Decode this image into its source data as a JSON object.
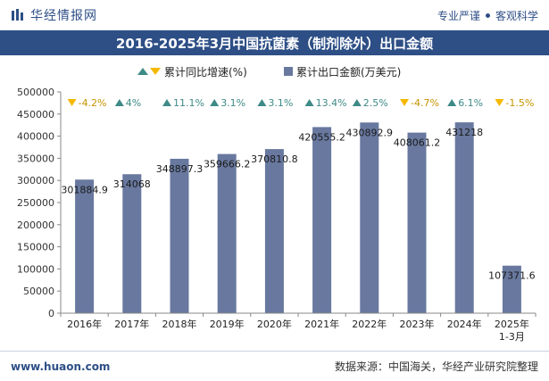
{
  "header": {
    "brand": "华经情报网",
    "slogan_left": "专业严谨",
    "slogan_right": "客观科学"
  },
  "colors": {
    "brand": "#2e4f86",
    "bar": "#68789f",
    "up": "#3d8a86",
    "down": "#f5b800",
    "axis": "#666666"
  },
  "chart_data": {
    "type": "bar",
    "title": "2016-2025年3月中国抗菌素（制剂除外）出口金额",
    "categories": [
      "2016年",
      "2017年",
      "2018年",
      "2019年",
      "2020年",
      "2021年",
      "2022年",
      "2023年",
      "2024年",
      "2025年\n1-3月"
    ],
    "series": [
      {
        "name": "累计出口金额(万美元)",
        "values": [
          301884.9,
          314068,
          348897.3,
          359666.2,
          370810.8,
          420555.2,
          430892.9,
          408061.2,
          431218,
          107371.6
        ],
        "labels": [
          "301884.9",
          "314068",
          "348897.3",
          "359666.2",
          "370810.8",
          "420555.2",
          "430892.9",
          "408061.2",
          "431218",
          "107371.6"
        ]
      },
      {
        "name": "累计同比增速(%)",
        "values": [
          -4.2,
          4,
          11.1,
          3.1,
          3.1,
          13.4,
          2.5,
          -4.7,
          6.1,
          -1.5
        ],
        "labels": [
          "-4.2%",
          "4%",
          "11.1%",
          "3.1%",
          "3.1%",
          "13.4%",
          "2.5%",
          "-4.7%",
          "6.1%",
          "-1.5%"
        ]
      }
    ],
    "legend": {
      "growth": "累计同比增速(%)",
      "amount": "累计出口金额(万美元)"
    },
    "ylim": [
      0,
      500000
    ],
    "yticks": [
      0,
      50000,
      100000,
      150000,
      200000,
      250000,
      300000,
      350000,
      400000,
      450000,
      500000
    ],
    "legend_position": "top-center"
  },
  "footer": {
    "website": "www.huaon.com",
    "source": "数据来源：中国海关，华经产业研究院整理"
  }
}
